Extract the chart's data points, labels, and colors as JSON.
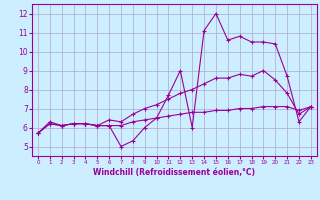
{
  "xlabel": "Windchill (Refroidissement éolien,°C)",
  "background_color": "#cceeff",
  "grid_color": "#aaaacc",
  "line_color": "#990099",
  "xlim": [
    -0.5,
    23.5
  ],
  "ylim": [
    4.5,
    12.5
  ],
  "xticks": [
    0,
    1,
    2,
    3,
    4,
    5,
    6,
    7,
    8,
    9,
    10,
    11,
    12,
    13,
    14,
    15,
    16,
    17,
    18,
    19,
    20,
    21,
    22,
    23
  ],
  "yticks": [
    5,
    6,
    7,
    8,
    9,
    10,
    11,
    12
  ],
  "line1_y": [
    5.7,
    6.3,
    6.1,
    6.2,
    6.2,
    6.1,
    6.1,
    5.0,
    5.3,
    6.0,
    6.5,
    7.7,
    9.0,
    6.0,
    11.1,
    12.0,
    10.6,
    10.8,
    10.5,
    10.5,
    10.4,
    8.7,
    6.3,
    7.1
  ],
  "line2_y": [
    5.7,
    6.2,
    6.1,
    6.2,
    6.2,
    6.1,
    6.4,
    6.3,
    6.7,
    7.0,
    7.2,
    7.5,
    7.8,
    8.0,
    8.3,
    8.6,
    8.6,
    8.8,
    8.7,
    9.0,
    8.5,
    7.8,
    6.7,
    7.1
  ],
  "line3_y": [
    5.7,
    6.2,
    6.1,
    6.2,
    6.2,
    6.1,
    6.1,
    6.1,
    6.3,
    6.4,
    6.5,
    6.6,
    6.7,
    6.8,
    6.8,
    6.9,
    6.9,
    7.0,
    7.0,
    7.1,
    7.1,
    7.1,
    6.9,
    7.1
  ],
  "xlabel_fontsize": 5.5,
  "tick_fontsize_x": 4.0,
  "tick_fontsize_y": 5.5,
  "linewidth": 0.8,
  "markersize": 3.5
}
